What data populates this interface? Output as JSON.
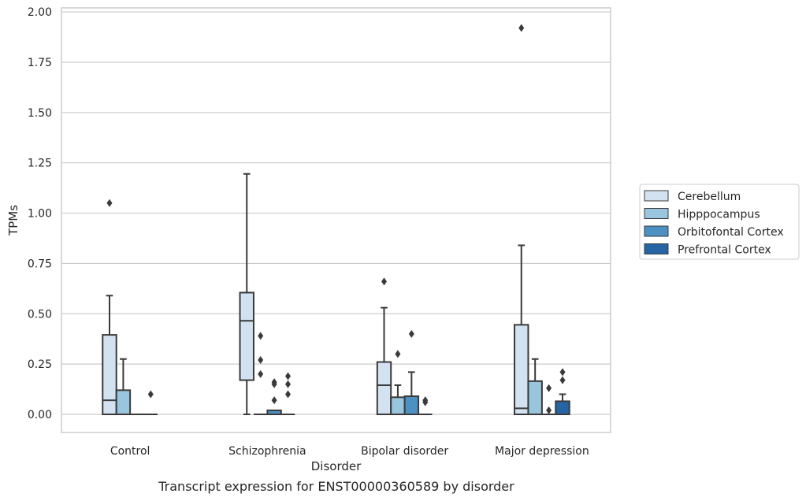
{
  "chart_data": {
    "type": "box",
    "title": "",
    "caption": "Transcript expression for ENST00000360589 by disorder",
    "xlabel": "Disorder",
    "ylabel": "TPMs",
    "ylim": [
      -0.09,
      2.02
    ],
    "yticks": [
      "0.00",
      "0.25",
      "0.50",
      "0.75",
      "1.00",
      "1.25",
      "1.50",
      "1.75",
      "2.00"
    ],
    "grid": true,
    "legend_position": "right",
    "categories": [
      "Control",
      "Schizophrenia",
      "Bipolar disorder",
      "Major depression"
    ],
    "series": [
      {
        "name": "Cerebellum",
        "color": "#d2e2f1",
        "boxes": [
          {
            "whislo": 0.0,
            "q1": 0.0,
            "med": 0.07,
            "q3": 0.395,
            "whishi": 0.59,
            "fliers": [
              1.05
            ]
          },
          {
            "whislo": 0.0,
            "q1": 0.17,
            "med": 0.465,
            "q3": 0.605,
            "whishi": 1.195,
            "fliers": []
          },
          {
            "whislo": 0.0,
            "q1": 0.0,
            "med": 0.145,
            "q3": 0.26,
            "whishi": 0.53,
            "fliers": [
              0.66
            ]
          },
          {
            "whislo": 0.0,
            "q1": 0.0,
            "med": 0.03,
            "q3": 0.445,
            "whishi": 0.84,
            "fliers": [
              1.92
            ]
          }
        ]
      },
      {
        "name": "Hipppocampus",
        "color": "#9ac5de",
        "boxes": [
          {
            "whislo": 0.0,
            "q1": 0.0,
            "med": 0.0,
            "q3": 0.12,
            "whishi": 0.275,
            "fliers": []
          },
          {
            "whislo": 0.0,
            "q1": 0.0,
            "med": 0.0,
            "q3": 0.0,
            "whishi": 0.0,
            "fliers": [
              0.39,
              0.27,
              0.2
            ]
          },
          {
            "whislo": 0.0,
            "q1": 0.0,
            "med": 0.0,
            "q3": 0.085,
            "whishi": 0.145,
            "fliers": [
              0.3
            ]
          },
          {
            "whislo": 0.0,
            "q1": 0.0,
            "med": 0.0,
            "q3": 0.165,
            "whishi": 0.275,
            "fliers": []
          }
        ]
      },
      {
        "name": "Orbitofontal Cortex",
        "color": "#4d91c2",
        "boxes": [
          {
            "whislo": 0.0,
            "q1": 0.0,
            "med": 0.0,
            "q3": 0.0,
            "whishi": 0.0,
            "fliers": []
          },
          {
            "whislo": 0.0,
            "q1": 0.0,
            "med": 0.0,
            "q3": 0.02,
            "whishi": 0.02,
            "fliers": [
              0.16,
              0.15,
              0.07
            ]
          },
          {
            "whislo": 0.0,
            "q1": 0.0,
            "med": 0.0,
            "q3": 0.09,
            "whishi": 0.21,
            "fliers": [
              0.4
            ]
          },
          {
            "whislo": 0.0,
            "q1": 0.0,
            "med": 0.0,
            "q3": 0.0,
            "whishi": 0.0,
            "fliers": [
              0.13,
              0.02
            ]
          }
        ]
      },
      {
        "name": "Prefrontal Cortex",
        "color": "#2565a3",
        "boxes": [
          {
            "whislo": 0.0,
            "q1": 0.0,
            "med": 0.0,
            "q3": 0.0,
            "whishi": 0.0,
            "fliers": [
              0.1
            ]
          },
          {
            "whislo": 0.0,
            "q1": 0.0,
            "med": 0.0,
            "q3": 0.0,
            "whishi": 0.0,
            "fliers": [
              0.19,
              0.15,
              0.1
            ]
          },
          {
            "whislo": 0.0,
            "q1": 0.0,
            "med": 0.0,
            "q3": 0.0,
            "whishi": 0.0,
            "fliers": [
              0.07,
              0.06
            ]
          },
          {
            "whislo": 0.0,
            "q1": 0.0,
            "med": 0.0,
            "q3": 0.065,
            "whishi": 0.1,
            "fliers": [
              0.21,
              0.17
            ]
          }
        ]
      }
    ]
  }
}
